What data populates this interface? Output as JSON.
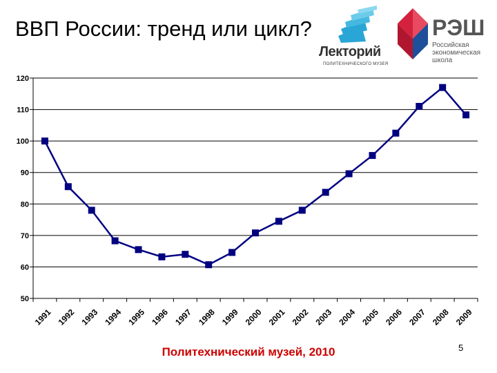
{
  "slide": {
    "title": "ВВП России: тренд или цикл?",
    "footer": "Политехнический музей, 2010",
    "page_number": "5"
  },
  "logos": {
    "lektoriy": {
      "name": "Лекторий",
      "subtitle": "ПОЛИТЕХНИЧЕСКОГО МУЗЕЯ",
      "color": "#2aa6d6"
    },
    "nes": {
      "name": "РЭШ",
      "subtitle_lines": [
        "Российская",
        "экономическая",
        "школа"
      ],
      "color": "#d4213d"
    }
  },
  "chart_data": {
    "type": "line",
    "title": "",
    "xlabel": "",
    "ylabel": "",
    "categories": [
      "1991",
      "1992",
      "1993",
      "1994",
      "1995",
      "1996",
      "1997",
      "1998",
      "1999",
      "2000",
      "2001",
      "2002",
      "2003",
      "2004",
      "2005",
      "2006",
      "2007",
      "2008",
      "2009"
    ],
    "series": [
      {
        "values": [
          100,
          85.5,
          78,
          68.3,
          65.5,
          63.2,
          64,
          60.7,
          64.6,
          70.8,
          74.5,
          78,
          83.7,
          89.6,
          95.4,
          102.5,
          111,
          117,
          108.3
        ],
        "color": "#000080",
        "marker": "square"
      }
    ],
    "ylim": [
      50,
      120
    ],
    "yticks": [
      50,
      60,
      70,
      80,
      90,
      100,
      110,
      120
    ],
    "grid": "horizontal",
    "legend": "none"
  }
}
